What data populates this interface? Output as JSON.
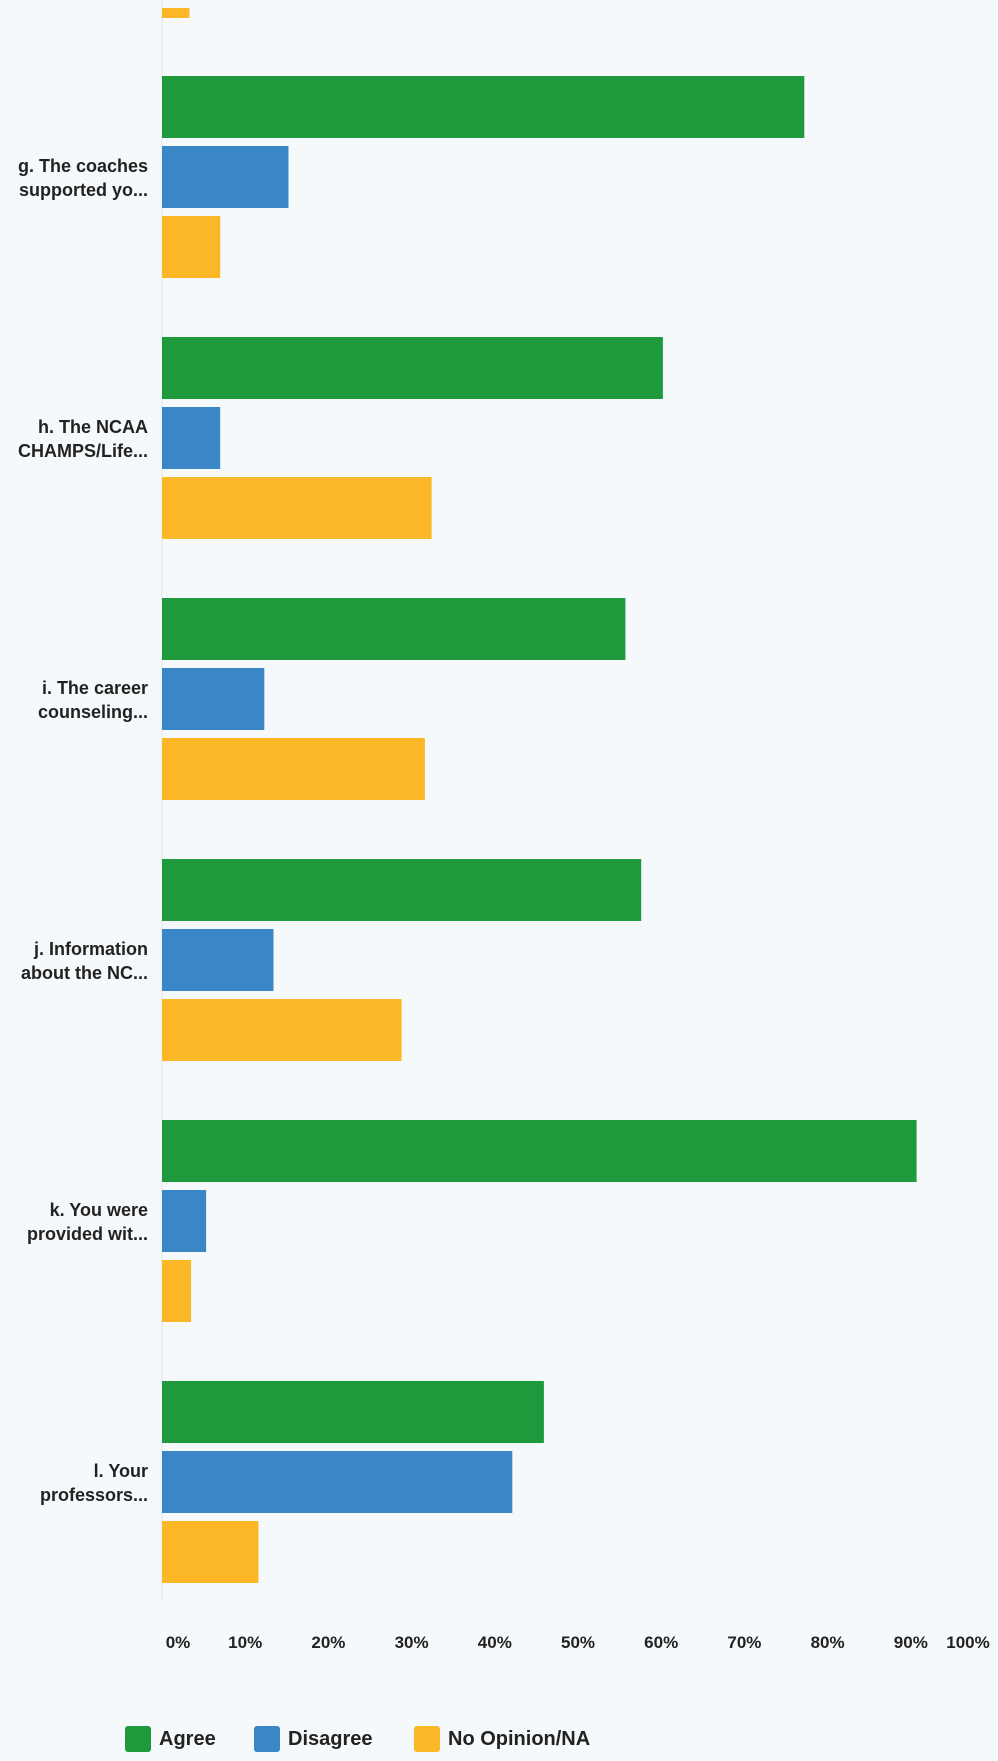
{
  "chart_data": {
    "type": "bar",
    "orientation": "horizontal",
    "xlim": [
      0,
      100
    ],
    "ticks": [
      "0%",
      "10%",
      "20%",
      "30%",
      "40%",
      "50%",
      "60%",
      "70%",
      "80%",
      "90%",
      "100%"
    ],
    "partial_top_category": {
      "series": "No Opinion/NA",
      "value": 3.3
    },
    "categories": [
      "g. The coaches supported yo...",
      "h. The NCAA CHAMPS/Life...",
      "i. The career counseling...",
      "j. Information about the NC...",
      "k. You were provided wit...",
      "l. Your professors..."
    ],
    "category_lines": [
      [
        "g. The coaches",
        "supported yo..."
      ],
      [
        "h. The NCAA",
        "CHAMPS/Life..."
      ],
      [
        "i. The career",
        "counseling..."
      ],
      [
        "j. Information",
        "about the NC..."
      ],
      [
        "k. You were",
        "provided wit..."
      ],
      [
        "l. Your",
        "professors..."
      ]
    ],
    "series": [
      {
        "name": "Agree",
        "color": "#1e9a3c",
        "values": [
          77.2,
          60.2,
          55.7,
          57.6,
          90.7,
          45.9
        ]
      },
      {
        "name": "Disagree",
        "color": "#3a86c6",
        "values": [
          15.2,
          7.0,
          12.3,
          13.4,
          5.3,
          42.1
        ]
      },
      {
        "name": "No Opinion/NA",
        "color": "#fbb725",
        "values": [
          7.0,
          32.4,
          31.6,
          28.8,
          3.5,
          11.6
        ]
      }
    ],
    "legend_position": "bottom",
    "grid": false
  },
  "legend": {
    "agree": "Agree",
    "disagree": "Disagree",
    "no_opinion": "No Opinion/NA"
  }
}
